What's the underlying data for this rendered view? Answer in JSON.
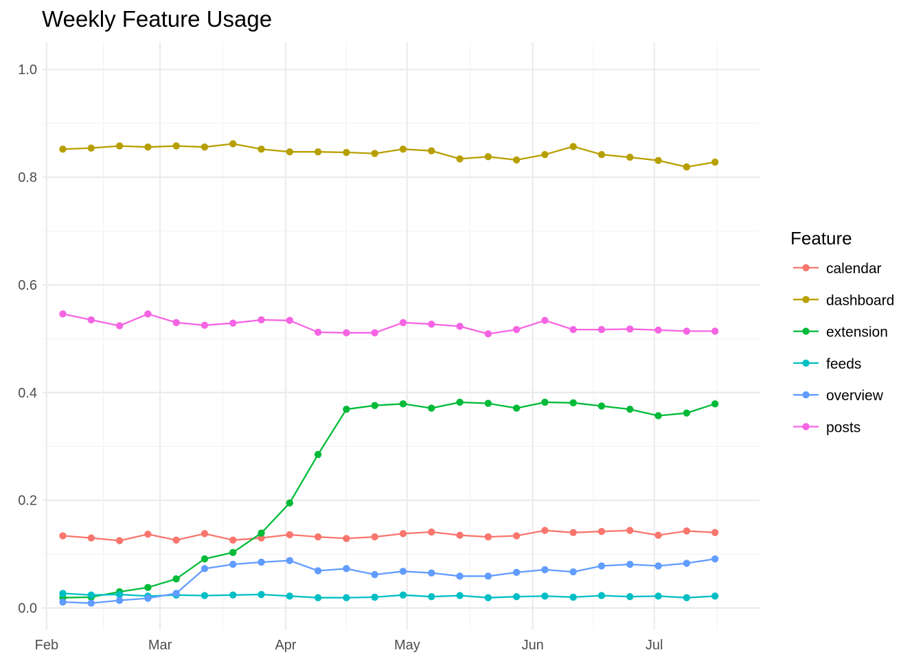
{
  "chart_data": {
    "type": "line",
    "title": "Weekly Feature Usage",
    "xlabel": "",
    "ylabel": "",
    "x_ticks": [
      "Feb",
      "Mar",
      "Apr",
      "May",
      "Jun",
      "Jul"
    ],
    "y_ticks": [
      "0.0",
      "0.2",
      "0.4",
      "0.6",
      "0.8",
      "1.0"
    ],
    "ylim": [
      -0.04,
      1.05
    ],
    "xlim": [
      "2019-01-31",
      "2019-07-27"
    ],
    "grid": true,
    "legend": {
      "title": "Feature",
      "position": "right"
    },
    "x": [
      "2019-02-05",
      "2019-02-12",
      "2019-02-19",
      "2019-02-26",
      "2019-03-05",
      "2019-03-12",
      "2019-03-19",
      "2019-03-26",
      "2019-04-02",
      "2019-04-09",
      "2019-04-16",
      "2019-04-23",
      "2019-04-30",
      "2019-05-07",
      "2019-05-14",
      "2019-05-21",
      "2019-05-28",
      "2019-06-04",
      "2019-06-11",
      "2019-06-18",
      "2019-06-25",
      "2019-07-02",
      "2019-07-09",
      "2019-07-16"
    ],
    "series": [
      {
        "name": "calendar",
        "color": "#F8766D",
        "values": [
          0.134,
          0.13,
          0.125,
          0.137,
          0.126,
          0.138,
          0.126,
          0.13,
          0.136,
          0.132,
          0.129,
          0.132,
          0.138,
          0.141,
          0.135,
          0.132,
          0.134,
          0.144,
          0.14,
          0.142,
          0.144,
          0.135,
          0.143,
          0.14
        ]
      },
      {
        "name": "dashboard",
        "color": "#B79F00",
        "values": [
          0.852,
          0.854,
          0.858,
          0.856,
          0.858,
          0.856,
          0.862,
          0.852,
          0.847,
          0.847,
          0.846,
          0.844,
          0.852,
          0.849,
          0.834,
          0.838,
          0.832,
          0.842,
          0.857,
          0.842,
          0.837,
          0.831,
          0.819,
          0.828
        ]
      },
      {
        "name": "extension",
        "color": "#00BA38",
        "values": [
          0.019,
          0.02,
          0.03,
          0.038,
          0.054,
          0.091,
          0.103,
          0.139,
          0.195,
          0.285,
          0.369,
          0.376,
          0.379,
          0.371,
          0.382,
          0.38,
          0.371,
          0.382,
          0.381,
          0.375,
          0.369,
          0.357,
          0.362,
          0.379
        ]
      },
      {
        "name": "feeds",
        "color": "#00BFC4",
        "values": [
          0.027,
          0.024,
          0.025,
          0.022,
          0.024,
          0.023,
          0.024,
          0.025,
          0.022,
          0.019,
          0.019,
          0.02,
          0.024,
          0.021,
          0.023,
          0.019,
          0.021,
          0.022,
          0.02,
          0.023,
          0.021,
          0.022,
          0.019,
          0.022
        ]
      },
      {
        "name": "overview",
        "color": "#619CFF",
        "values": [
          0.011,
          0.009,
          0.014,
          0.018,
          0.027,
          0.073,
          0.081,
          0.085,
          0.088,
          0.069,
          0.073,
          0.062,
          0.068,
          0.065,
          0.059,
          0.059,
          0.066,
          0.071,
          0.067,
          0.078,
          0.081,
          0.078,
          0.083,
          0.091
        ]
      },
      {
        "name": "posts",
        "color": "#F564E3",
        "values": [
          0.546,
          0.535,
          0.524,
          0.546,
          0.53,
          0.525,
          0.529,
          0.535,
          0.534,
          0.512,
          0.511,
          0.511,
          0.53,
          0.527,
          0.523,
          0.509,
          0.517,
          0.534,
          0.517,
          0.517,
          0.518,
          0.516,
          0.514,
          0.514
        ]
      }
    ]
  }
}
